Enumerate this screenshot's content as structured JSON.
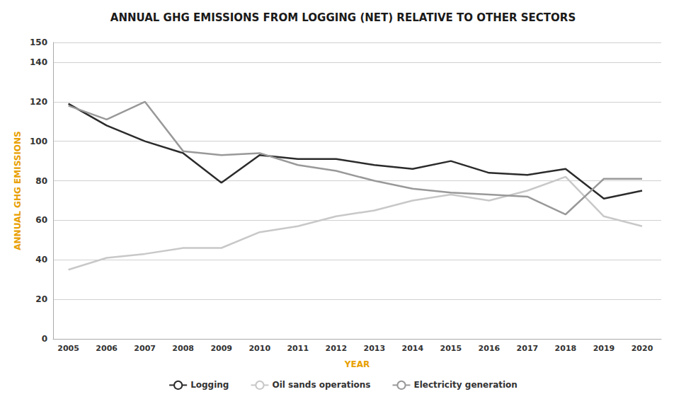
{
  "chart_data": {
    "type": "line",
    "title": "ANNUAL GHG EMISSIONS FROM LOGGING (NET) RELATIVE TO OTHER SECTORS",
    "x_label": "YEAR",
    "y_label": "ANNUAL GHG EMISSIONS",
    "x": [
      2005,
      2006,
      2007,
      2008,
      2009,
      2010,
      2011,
      2012,
      2013,
      2014,
      2015,
      2016,
      2017,
      2018,
      2019,
      2020
    ],
    "series": [
      {
        "name": "Logging",
        "color": "#2b2b2b",
        "values": [
          119,
          108,
          100,
          94,
          79,
          93,
          91,
          91,
          88,
          86,
          90,
          84,
          83,
          86,
          71,
          75
        ]
      },
      {
        "name": "Oil sands operations",
        "color": "#c8c8c8",
        "values": [
          35,
          41,
          43,
          46,
          46,
          54,
          57,
          62,
          65,
          70,
          73,
          70,
          75,
          82,
          62,
          57
        ]
      },
      {
        "name": "Electricity generation",
        "color": "#999999",
        "values": [
          118,
          111,
          120,
          95,
          93,
          94,
          88,
          85,
          80,
          76,
          74,
          73,
          72,
          63,
          81,
          81
        ]
      }
    ],
    "xlim": [
      2004.6,
      2020.5
    ],
    "xticks": [
      2005,
      2006,
      2007,
      2008,
      2009,
      2010,
      2011,
      2012,
      2013,
      2014,
      2015,
      2016,
      2017,
      2018,
      2019,
      2020
    ],
    "ylim": [
      0,
      150
    ],
    "yticks": [
      0,
      20,
      40,
      60,
      80,
      100,
      120,
      140
    ],
    "grid": "y",
    "legend": "bottom"
  }
}
